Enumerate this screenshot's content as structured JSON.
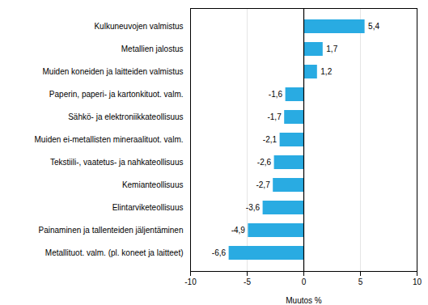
{
  "chart_data": {
    "type": "bar",
    "orientation": "horizontal",
    "categories": [
      "Metallituot. valm. (pl. koneet ja laitteet)",
      "Painaminen ja tallenteiden jäljentäminen",
      "Elintarviketeollisuus",
      "Kemianteollisuus",
      "Tekstiili-, vaatetus- ja nahkateollisuus",
      "Muiden ei-metallisten mineraalituot. valm.",
      "Sähkö- ja elektroniikkateollisuus",
      "Paperin, paperi- ja kartonkituot. valm.",
      "Muiden koneiden ja laitteiden valmistus",
      "Metallien jalostus",
      "Kulkuneuvojen valmistus"
    ],
    "values": [
      -6.6,
      -4.9,
      -3.6,
      -2.7,
      -2.6,
      -2.1,
      -1.7,
      -1.6,
      1.2,
      1.7,
      5.4
    ],
    "value_labels": [
      "-6,6",
      "-4,9",
      "-3,6",
      "-2,7",
      "-2,6",
      "-2,1",
      "-1,7",
      "-1,6",
      "1,2",
      "1,7",
      "5,4"
    ],
    "data_labels": true,
    "color": "#29abe2",
    "xlabel": "Muutos %",
    "xlim": [
      -10,
      10
    ],
    "xticks": [
      -10,
      -5,
      0,
      5,
      10
    ],
    "grid": true
  }
}
